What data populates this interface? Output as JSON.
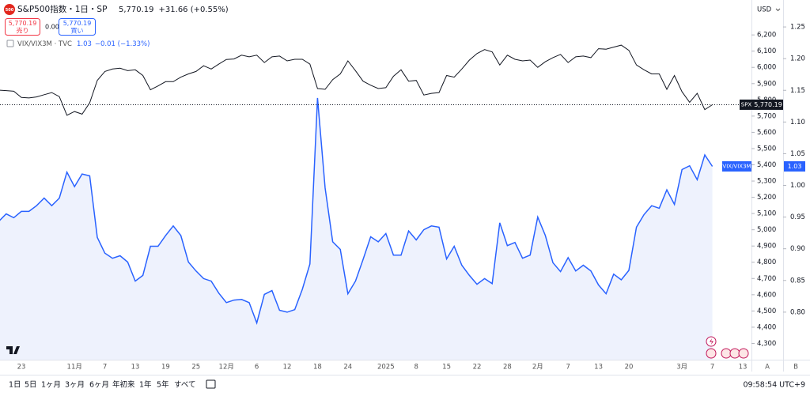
{
  "header": {
    "logo": "500",
    "symbol": "S&P500指数・1日・SP",
    "price": "5,770.19",
    "change": "+31.66 (+0.55%)"
  },
  "trade": {
    "sell_price": "5,770.19",
    "sell": "売り",
    "spread": "0.00",
    "buy_price": "5,770.19",
    "buy": "買い"
  },
  "chart_data": {
    "type": "line",
    "currency": "USD",
    "legend": [
      {
        "label": "VIX/VIX3M · TVC",
        "value": "1.03",
        "change": "−0.01 (−1.33%)"
      }
    ],
    "categories": [
      null,
      null,
      null,
      "23",
      null,
      null,
      null,
      null,
      null,
      null,
      "11月",
      null,
      null,
      null,
      "7",
      null,
      null,
      null,
      "13",
      null,
      null,
      null,
      "19",
      null,
      null,
      null,
      "25",
      null,
      null,
      null,
      "12月",
      null,
      null,
      null,
      "6",
      null,
      null,
      null,
      "12",
      null,
      null,
      null,
      "18",
      null,
      null,
      null,
      "24",
      null,
      null,
      null,
      null,
      "2025",
      null,
      null,
      null,
      "8",
      null,
      null,
      null,
      "15",
      null,
      null,
      null,
      "22",
      null,
      null,
      null,
      "28",
      null,
      null,
      null,
      "2月",
      null,
      null,
      null,
      "7",
      null,
      null,
      null,
      "13",
      null,
      null,
      null,
      "20",
      null,
      null,
      null,
      null,
      null,
      null,
      "3月",
      null,
      null,
      null,
      "7",
      null,
      null,
      null,
      "13"
    ],
    "series": [
      {
        "name": "SPX",
        "color": "#131722",
        "axis": "y",
        "last_label": "5,770.19",
        "values": [
          5860,
          5857,
          5853,
          5815,
          5812,
          5818,
          5832,
          5845,
          5820,
          5705,
          5728,
          5712,
          5782,
          5920,
          5975,
          5990,
          5995,
          5980,
          5985,
          5950,
          5862,
          5886,
          5912,
          5912,
          5940,
          5960,
          5975,
          6010,
          5990,
          6020,
          6049,
          6052,
          6075,
          6065,
          6075,
          6030,
          6065,
          6070,
          6040,
          6050,
          6050,
          6020,
          5870,
          5865,
          5925,
          5960,
          6040,
          5980,
          5915,
          5890,
          5870,
          5875,
          5945,
          5985,
          5915,
          5920,
          5830,
          5840,
          5845,
          5950,
          5940,
          5990,
          6045,
          6085,
          6110,
          6095,
          6015,
          6075,
          6050,
          6040,
          6045,
          6000,
          6035,
          6060,
          6080,
          6030,
          6065,
          6070,
          6060,
          6115,
          6112,
          6125,
          6137,
          6105,
          6015,
          5985,
          5960,
          5960,
          5865,
          5950,
          5850,
          5785,
          5840,
          5740,
          5770.19,
          null,
          null,
          null,
          null
        ]
      },
      {
        "name": "VIX/VIX3M",
        "color": "#2962ff",
        "fill": "#eef2fd",
        "axis": "y2",
        "values": [
          0.943,
          0.955,
          0.949,
          0.959,
          0.959,
          0.968,
          0.98,
          0.968,
          0.98,
          1.021,
          0.998,
          1.018,
          1.015,
          0.918,
          0.893,
          0.885,
          0.889,
          0.879,
          0.849,
          0.858,
          0.904,
          0.904,
          0.921,
          0.936,
          0.921,
          0.879,
          0.865,
          0.853,
          0.849,
          0.83,
          0.815,
          0.819,
          0.82,
          0.815,
          0.783,
          0.828,
          0.834,
          0.803,
          0.8,
          0.804,
          0.836,
          0.876,
          1.138,
          0.996,
          0.911,
          0.899,
          0.829,
          0.849,
          0.883,
          0.919,
          0.911,
          0.924,
          0.89,
          0.89,
          0.928,
          0.914,
          0.93,
          0.936,
          0.934,
          0.884,
          0.904,
          0.874,
          0.858,
          0.844,
          0.853,
          0.845,
          0.941,
          0.905,
          0.91,
          0.885,
          0.89,
          0.95,
          0.921,
          0.878,
          0.864,
          0.886,
          0.865,
          0.874,
          0.865,
          0.843,
          0.829,
          0.86,
          0.851,
          0.866,
          0.934,
          0.954,
          0.968,
          0.964,
          0.993,
          0.97,
          1.025,
          1.031,
          1.009,
          1.048,
          1.03,
          null,
          null,
          null,
          null
        ]
      }
    ],
    "ylim": [
      4200,
      6415
    ],
    "yticks": [
      {
        "value": 6200,
        "label": "6,200"
      },
      {
        "value": 6100,
        "label": "6,100"
      },
      {
        "value": 6000,
        "label": "6,000"
      },
      {
        "value": 5900,
        "label": "5,900"
      },
      {
        "value": 5800,
        "label": "5,800"
      },
      {
        "value": 5700,
        "label": "5,700"
      },
      {
        "value": 5600,
        "label": "5,600"
      },
      {
        "value": 5500,
        "label": "5,500"
      },
      {
        "value": 5400,
        "label": "5,400"
      },
      {
        "value": 5300,
        "label": "5,300"
      },
      {
        "value": 5200,
        "label": "5,200"
      },
      {
        "value": 5100,
        "label": "5,100"
      },
      {
        "value": 5000,
        "label": "5,000"
      },
      {
        "value": 4900,
        "label": "4,900"
      },
      {
        "value": 4800,
        "label": "4,800"
      },
      {
        "value": 4700,
        "label": "4,700"
      },
      {
        "value": 4600,
        "label": "4,600"
      },
      {
        "value": 4500,
        "label": "4,500"
      },
      {
        "value": 4400,
        "label": "4,400"
      },
      {
        "value": 4300,
        "label": "4,300"
      }
    ],
    "y2lim": [
      0.725,
      1.2925
    ],
    "y2ticks": [
      1.25,
      {
        "value": 1.2,
        "label": "1.20"
      },
      1.15,
      {
        "value": 1.1,
        "label": "1.10"
      },
      1.05,
      {
        "value": 1,
        "label": "1.00"
      },
      0.95,
      {
        "value": 0.9,
        "label": "0.90"
      },
      0.85,
      {
        "value": 0.8,
        "label": "0.80"
      }
    ],
    "grid": false,
    "axis_buttons": [
      "A",
      "B"
    ]
  },
  "toolbar": {
    "ranges": [
      "1日",
      "5日",
      "1ヶ月",
      "3ヶ月",
      "6ヶ月",
      "年初来",
      "1年",
      "5年",
      "すべて"
    ],
    "clock": "09:58:54 UTC+9"
  }
}
